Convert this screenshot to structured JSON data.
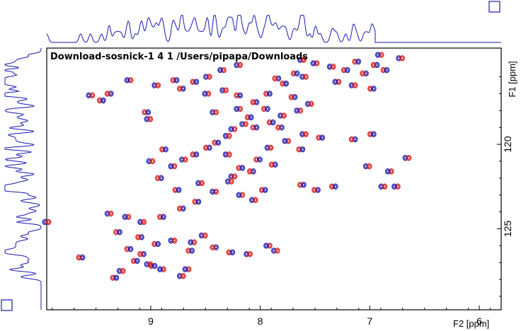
{
  "header": {
    "dataset_line": "Download-sosnick-1  4  1  /Users/pipapa/Downloads"
  },
  "colors": {
    "positive": "#d81818",
    "negative": "#1a1ab0",
    "projection": "#1a1ab0",
    "frame": "#000000"
  },
  "chart_data": {
    "type": "scatter",
    "title": "",
    "xlabel": "F2 [ppm]",
    "ylabel": "F1 [ppm]",
    "xlim": [
      9.95,
      5.8
    ],
    "ylim": [
      114.3,
      129.8
    ],
    "x_ticks": [
      "9",
      "8",
      "7",
      "6"
    ],
    "x_tick_values": [
      9,
      8,
      7,
      6
    ],
    "y_ticks": [
      "120",
      "125"
    ],
    "y_tick_values": [
      120,
      125
    ],
    "y_tick_labels_extra": [
      "F1 [ppm]"
    ],
    "grid": false,
    "series": [
      {
        "peaks": [
          [
            6.91,
            114.7
          ],
          [
            6.72,
            114.9
          ],
          [
            7.12,
            115.1
          ],
          [
            6.95,
            115.3
          ],
          [
            6.86,
            115.6
          ],
          [
            7.62,
            115.0
          ],
          [
            7.5,
            115.2
          ],
          [
            7.35,
            115.4
          ],
          [
            7.22,
            115.6
          ],
          [
            7.05,
            115.8
          ],
          [
            7.68,
            115.8
          ],
          [
            7.6,
            116.0
          ],
          [
            7.3,
            116.3
          ],
          [
            7.15,
            116.5
          ],
          [
            6.98,
            116.7
          ],
          [
            7.85,
            116.1
          ],
          [
            7.78,
            116.4
          ],
          [
            8.2,
            115.3
          ],
          [
            8.35,
            115.6
          ],
          [
            8.48,
            116.0
          ],
          [
            8.6,
            116.3
          ],
          [
            8.72,
            116.7
          ],
          [
            8.78,
            116.2
          ],
          [
            8.95,
            116.5
          ],
          [
            9.2,
            116.2
          ],
          [
            9.55,
            117.1
          ],
          [
            9.45,
            117.4
          ],
          [
            9.38,
            117.0
          ],
          [
            9.04,
            118.1
          ],
          [
            9.02,
            118.5
          ],
          [
            8.49,
            117.0
          ],
          [
            8.33,
            116.8
          ],
          [
            8.2,
            117.1
          ],
          [
            8.05,
            117.5
          ],
          [
            7.95,
            117.9
          ],
          [
            7.8,
            118.3
          ],
          [
            7.65,
            118.0
          ],
          [
            7.55,
            117.6
          ],
          [
            7.9,
            118.7
          ],
          [
            7.82,
            119.0
          ],
          [
            8.1,
            118.4
          ],
          [
            8.15,
            118.8
          ],
          [
            8.25,
            119.1
          ],
          [
            8.3,
            119.5
          ],
          [
            8.4,
            119.9
          ],
          [
            8.48,
            120.2
          ],
          [
            8.6,
            120.6
          ],
          [
            8.7,
            120.9
          ],
          [
            8.8,
            121.3
          ],
          [
            9.0,
            121.0
          ],
          [
            8.88,
            120.3
          ],
          [
            8.92,
            122.0
          ],
          [
            8.76,
            122.7
          ],
          [
            8.55,
            122.3
          ],
          [
            8.42,
            122.8
          ],
          [
            8.25,
            121.9
          ],
          [
            8.18,
            121.4
          ],
          [
            8.08,
            121.6
          ],
          [
            8.02,
            120.9
          ],
          [
            7.92,
            120.2
          ],
          [
            7.76,
            119.8
          ],
          [
            7.6,
            119.4
          ],
          [
            7.45,
            119.6
          ],
          [
            7.15,
            119.7
          ],
          [
            6.98,
            119.4
          ],
          [
            6.66,
            120.8
          ],
          [
            6.82,
            121.6
          ],
          [
            7.02,
            121.3
          ],
          [
            7.63,
            120.3
          ],
          [
            7.88,
            121.2
          ],
          [
            7.97,
            122.7
          ],
          [
            8.06,
            123.3
          ],
          [
            8.18,
            123.0
          ],
          [
            8.28,
            122.2
          ],
          [
            8.58,
            123.4
          ],
          [
            8.72,
            123.8
          ],
          [
            8.9,
            124.3
          ],
          [
            9.08,
            124.6
          ],
          [
            9.22,
            124.3
          ],
          [
            9.38,
            124.1
          ],
          [
            9.3,
            125.2
          ],
          [
            9.1,
            125.5
          ],
          [
            8.95,
            125.9
          ],
          [
            8.8,
            125.7
          ],
          [
            8.62,
            125.8
          ],
          [
            8.52,
            125.4
          ],
          [
            8.64,
            126.3
          ],
          [
            8.42,
            126.1
          ],
          [
            8.27,
            126.4
          ],
          [
            8.11,
            126.5
          ],
          [
            7.93,
            126.0
          ],
          [
            7.86,
            126.3
          ],
          [
            9.2,
            126.2
          ],
          [
            9.08,
            126.5
          ],
          [
            9.14,
            126.9
          ],
          [
            9.02,
            127.1
          ],
          [
            8.9,
            127.4
          ],
          [
            9.27,
            127.5
          ],
          [
            9.33,
            127.9
          ],
          [
            9.64,
            126.7
          ],
          [
            8.98,
            127.2
          ],
          [
            8.72,
            127.8
          ],
          [
            8.67,
            127.4
          ],
          [
            9.95,
            124.6
          ],
          [
            7.62,
            122.4
          ],
          [
            7.49,
            122.7
          ],
          [
            7.33,
            122.5
          ],
          [
            6.88,
            122.5
          ],
          [
            6.76,
            122.5
          ],
          [
            8.3,
            120.6
          ],
          [
            8.05,
            119.0
          ],
          [
            7.7,
            117.2
          ],
          [
            7.93,
            117.0
          ],
          [
            8.42,
            118.1
          ],
          [
            8.2,
            117.9
          ]
        ]
      }
    ]
  },
  "controls": {
    "top_right_box": "",
    "bottom_left_box": ""
  }
}
